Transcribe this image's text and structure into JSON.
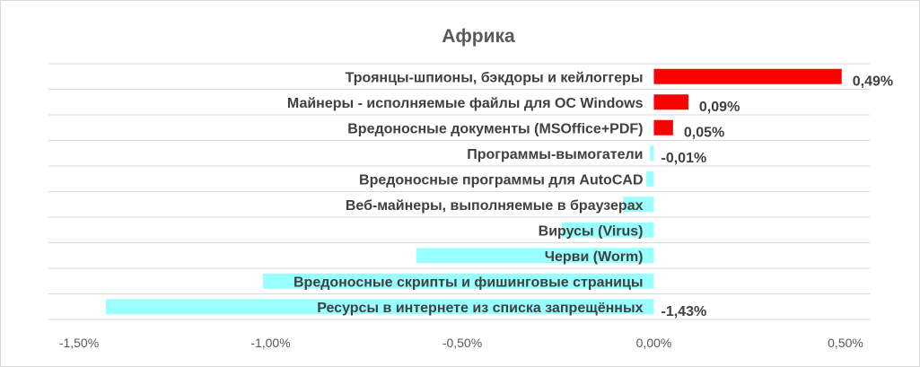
{
  "chart_data": {
    "type": "bar",
    "orientation": "horizontal",
    "title": "Африка",
    "xlabel": "",
    "ylabel": "",
    "xlim": [
      -1.5,
      0.5
    ],
    "x_ticks": [
      -1.5,
      -1.0,
      -0.5,
      0.0,
      0.5
    ],
    "x_tick_labels": [
      "-1,50%",
      "-1,00%",
      "-0,50%",
      "0,00%",
      "0,50%"
    ],
    "grid": "horizontal",
    "legend": "none",
    "colors": {
      "positive": "#ff0000",
      "negative": "#99ffff",
      "grid": "#d9d9d9"
    },
    "categories": [
      "Троянцы-шпионы, бэкдоры и кейлоггеры",
      "Майнеры - исполняемые файлы для ОС Windows",
      "Вредоносные документы (MSOffice+PDF)",
      "Программы-вымогатели",
      "Вредоносные программы для AutoCAD",
      "Веб-майнеры, выполняемые в браузерах",
      "Вирусы (Virus)",
      "Черви (Worm)",
      "Вредоносные скрипты и фишинговые страницы",
      "Ресурсы в интернете из списка запрещённых"
    ],
    "values": [
      0.49,
      0.09,
      0.05,
      -0.01,
      -0.02,
      -0.08,
      -0.24,
      -0.62,
      -1.02,
      -1.43
    ],
    "data_labels": [
      "0,49%",
      "0,09%",
      "0,05%",
      "-0,01%",
      "",
      "",
      "",
      "",
      "",
      "-1,43%"
    ]
  }
}
